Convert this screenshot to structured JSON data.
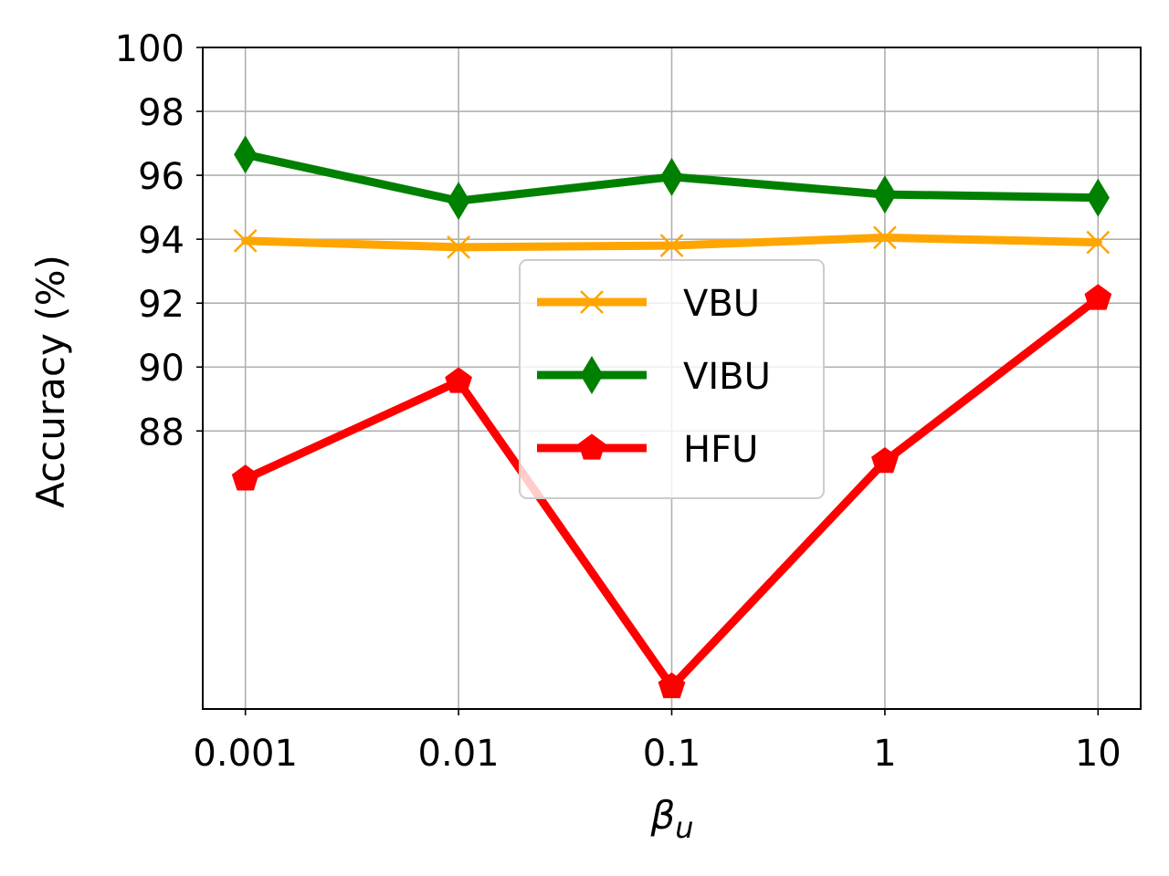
{
  "chart_data": {
    "type": "line",
    "x": [
      "0.001",
      "0.01",
      "0.1",
      "1",
      "10"
    ],
    "xscale": "log",
    "xlabel_symbol": "β",
    "xlabel_subscript": "u",
    "ylabel": "Accuracy (%)",
    "yticks": [
      "88",
      "90",
      "92",
      "94",
      "96",
      "98",
      "100"
    ],
    "ylim": [
      79.3,
      100
    ],
    "grid": true,
    "legend_position": "center",
    "series": [
      {
        "name": "VBU",
        "color": "#ffa500",
        "marker": "x",
        "values": [
          93.95,
          93.75,
          93.8,
          94.05,
          93.9
        ]
      },
      {
        "name": "VIBU",
        "color": "#008000",
        "marker": "thin-diamond",
        "values": [
          96.65,
          95.2,
          95.95,
          95.4,
          95.3
        ]
      },
      {
        "name": "HFU",
        "color": "#ff0000",
        "marker": "pentagon",
        "values": [
          86.5,
          89.55,
          80.0,
          87.05,
          92.15
        ]
      }
    ]
  }
}
